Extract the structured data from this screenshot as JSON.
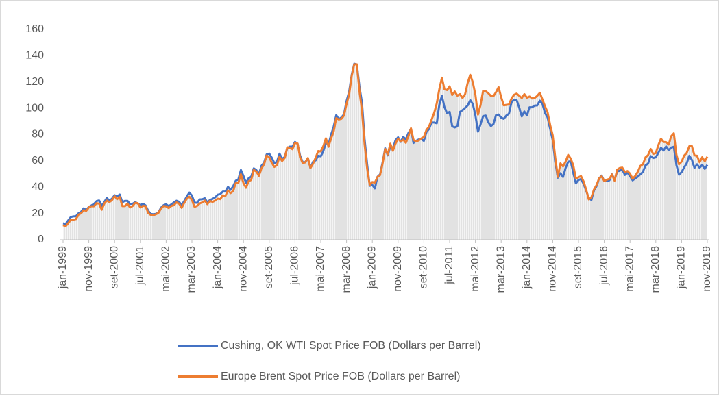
{
  "chart_data": {
    "type": "line",
    "categories": [
      "jan-1999",
      null,
      null,
      null,
      null,
      null,
      null,
      null,
      null,
      null,
      "nov-1999",
      null,
      null,
      null,
      null,
      null,
      null,
      null,
      null,
      null,
      "set-2000",
      null,
      null,
      null,
      null,
      null,
      null,
      null,
      null,
      null,
      "jul-2001",
      null,
      null,
      null,
      null,
      null,
      null,
      null,
      null,
      null,
      "mai-2002",
      null,
      null,
      null,
      null,
      null,
      null,
      null,
      null,
      null,
      "mar-2003",
      null,
      null,
      null,
      null,
      null,
      null,
      null,
      null,
      null,
      "jan-2004",
      null,
      null,
      null,
      null,
      null,
      null,
      null,
      null,
      null,
      "nov-2004",
      null,
      null,
      null,
      null,
      null,
      null,
      null,
      null,
      null,
      "set-2005",
      null,
      null,
      null,
      null,
      null,
      null,
      null,
      null,
      null,
      "jul-2006",
      null,
      null,
      null,
      null,
      null,
      null,
      null,
      null,
      null,
      "mai-2007",
      null,
      null,
      null,
      null,
      null,
      null,
      null,
      null,
      null,
      "mar-2008",
      null,
      null,
      null,
      null,
      null,
      null,
      null,
      null,
      null,
      "jan-2009",
      null,
      null,
      null,
      null,
      null,
      null,
      null,
      null,
      null,
      "nov-2009",
      null,
      null,
      null,
      null,
      null,
      null,
      null,
      null,
      null,
      "set-2010",
      null,
      null,
      null,
      null,
      null,
      null,
      null,
      null,
      null,
      "jul-2011",
      null,
      null,
      null,
      null,
      null,
      null,
      null,
      null,
      null,
      "mai-2012",
      null,
      null,
      null,
      null,
      null,
      null,
      null,
      null,
      null,
      "mar-2013",
      null,
      null,
      null,
      null,
      null,
      null,
      null,
      null,
      null,
      "jan-2014",
      null,
      null,
      null,
      null,
      null,
      null,
      null,
      null,
      null,
      "nov-2014",
      null,
      null,
      null,
      null,
      null,
      null,
      null,
      null,
      null,
      "set-2015",
      null,
      null,
      null,
      null,
      null,
      null,
      null,
      null,
      null,
      "jul-2016",
      null,
      null,
      null,
      null,
      null,
      null,
      null,
      null,
      null,
      "mai-2017",
      null,
      null,
      null,
      null,
      null,
      null,
      null,
      null,
      null,
      "mar-2018",
      null,
      null,
      null,
      null,
      null,
      null,
      null,
      null,
      null,
      "jan-2019",
      null,
      null,
      null,
      null,
      null,
      null,
      null,
      null,
      null,
      "nov-2019"
    ],
    "series": [
      {
        "name": "Cushing, OK WTI Spot Price FOB (Dollars per Barrel)",
        "color": "#4472c4",
        "values": [
          12.5,
          12.0,
          14.7,
          17.3,
          17.8,
          17.9,
          20.1,
          21.3,
          23.9,
          22.6,
          25.0,
          26.1,
          27.3,
          29.4,
          29.9,
          25.7,
          28.8,
          31.8,
          29.7,
          31.3,
          33.9,
          33.1,
          34.4,
          28.5,
          29.6,
          29.6,
          27.2,
          27.4,
          28.6,
          27.6,
          26.4,
          27.4,
          26.2,
          22.2,
          19.6,
          19.4,
          19.7,
          20.7,
          24.4,
          26.3,
          27.0,
          25.5,
          26.9,
          28.4,
          29.7,
          28.9,
          26.3,
          29.4,
          32.9,
          35.9,
          33.6,
          28.3,
          28.1,
          30.7,
          30.8,
          31.6,
          28.3,
          30.3,
          31.1,
          32.2,
          34.3,
          34.7,
          36.7,
          36.7,
          40.3,
          38.0,
          40.7,
          44.9,
          45.9,
          53.1,
          48.5,
          43.3,
          46.8,
          48.0,
          54.3,
          53.0,
          49.8,
          56.3,
          58.7,
          65.0,
          65.6,
          62.4,
          58.3,
          59.4,
          65.5,
          61.6,
          62.9,
          69.7,
          70.9,
          70.9,
          74.4,
          73.0,
          63.8,
          58.9,
          59.1,
          62.0,
          54.5,
          59.3,
          60.4,
          63.9,
          63.5,
          67.5,
          74.1,
          72.4,
          79.9,
          86.0,
          94.8,
          91.7,
          93.0,
          95.4,
          105.5,
          112.6,
          125.4,
          133.9,
          133.4,
          116.7,
          104.1,
          76.6,
          57.3,
          41.1,
          41.7,
          39.1,
          47.9,
          49.7,
          59.0,
          69.6,
          64.2,
          71.1,
          69.4,
          75.7,
          78.0,
          74.5,
          78.3,
          76.4,
          81.2,
          84.3,
          73.7,
          75.3,
          76.3,
          76.6,
          75.2,
          81.9,
          84.3,
          89.2,
          89.2,
          88.6,
          102.9,
          109.5,
          100.9,
          96.3,
          97.3,
          86.3,
          85.5,
          86.3,
          97.2,
          98.6,
          100.3,
          102.2,
          106.2,
          103.3,
          94.7,
          82.3,
          87.9,
          94.1,
          94.5,
          89.5,
          86.5,
          87.9,
          94.8,
          95.3,
          92.9,
          92.0,
          94.5,
          95.8,
          104.6,
          106.6,
          106.3,
          100.5,
          93.9,
          97.6,
          94.6,
          100.8,
          100.8,
          102.1,
          102.2,
          105.8,
          103.6,
          96.5,
          93.2,
          84.4,
          75.8,
          59.3,
          47.2,
          50.6,
          47.8,
          54.5,
          59.3,
          59.8,
          50.9,
          42.9,
          45.5,
          46.2,
          42.4,
          37.2,
          31.7,
          30.3,
          37.5,
          40.8,
          46.7,
          48.8,
          44.7,
          44.7,
          45.2,
          49.8,
          45.7,
          52.0,
          52.5,
          53.5,
          49.3,
          51.1,
          48.5,
          45.2,
          46.6,
          48.0,
          49.8,
          51.6,
          56.6,
          57.9,
          63.7,
          62.2,
          62.7,
          66.3,
          70.0,
          67.9,
          71.0,
          68.1,
          70.2,
          70.8,
          57.0,
          49.5,
          51.4,
          55.0,
          58.2,
          63.9,
          60.8,
          54.7,
          57.4,
          54.8,
          57.0,
          54.0,
          57.0
        ]
      },
      {
        "name": "Europe Brent Spot Price FOB (Dollars per Barrel)",
        "color": "#ed7d31",
        "values": [
          11.1,
          10.3,
          12.5,
          15.3,
          15.3,
          15.7,
          19.1,
          20.2,
          22.5,
          22.0,
          24.6,
          25.5,
          25.5,
          27.8,
          27.5,
          22.8,
          27.6,
          29.8,
          28.7,
          30.2,
          33.1,
          30.9,
          32.5,
          25.6,
          25.6,
          27.5,
          24.5,
          25.7,
          28.1,
          27.8,
          24.6,
          25.8,
          25.6,
          20.5,
          18.9,
          18.6,
          19.4,
          20.3,
          23.7,
          25.7,
          25.4,
          24.1,
          25.7,
          26.3,
          28.4,
          27.5,
          24.3,
          28.0,
          31.2,
          32.8,
          30.3,
          25.0,
          25.8,
          27.6,
          28.4,
          29.8,
          27.1,
          29.6,
          28.8,
          29.8,
          31.3,
          30.9,
          33.8,
          33.4,
          37.6,
          35.5,
          37.1,
          43.0,
          43.1,
          49.8,
          43.1,
          39.6,
          44.5,
          45.5,
          53.1,
          51.9,
          48.7,
          54.3,
          57.5,
          64.1,
          62.7,
          58.5,
          55.5,
          56.8,
          63.1,
          59.9,
          62.3,
          70.4,
          70.0,
          68.9,
          73.7,
          73.2,
          62.5,
          58.4,
          58.9,
          62.2,
          54.6,
          57.8,
          62.4,
          67.5,
          67.2,
          71.3,
          77.2,
          70.8,
          77.1,
          82.3,
          92.5,
          91.5,
          92.0,
          94.5,
          103.3,
          110.4,
          124.6,
          133.5,
          133.5,
          113.4,
          98.0,
          72.7,
          54.0,
          41.6,
          43.9,
          43.5,
          47.7,
          49.2,
          58.1,
          69.1,
          65.0,
          73.1,
          67.7,
          73.2,
          77.0,
          74.7,
          76.2,
          73.8,
          78.8,
          84.8,
          75.9,
          74.8,
          75.6,
          77.1,
          78.2,
          83.5,
          86.1,
          91.4,
          96.5,
          103.7,
          114.6,
          123.3,
          114.5,
          113.9,
          116.7,
          110.2,
          112.8,
          109.6,
          110.8,
          107.9,
          110.7,
          119.3,
          125.5,
          119.8,
          110.3,
          95.2,
          102.6,
          113.4,
          113.0,
          111.5,
          109.5,
          109.2,
          112.3,
          116.1,
          108.5,
          102.3,
          102.6,
          102.9,
          107.4,
          110.3,
          111.2,
          109.5,
          107.8,
          110.8,
          108.1,
          109.0,
          107.5,
          107.8,
          109.5,
          111.8,
          106.8,
          101.6,
          97.1,
          87.4,
          79.4,
          62.3,
          47.8,
          58.1,
          55.9,
          59.5,
          64.6,
          61.7,
          56.5,
          46.5,
          47.6,
          48.4,
          44.3,
          38.0,
          30.7,
          32.2,
          38.2,
          41.6,
          46.7,
          48.3,
          44.7,
          45.7,
          46.3,
          49.7,
          45.0,
          53.3,
          54.6,
          54.9,
          51.6,
          52.3,
          50.3,
          46.4,
          48.5,
          51.7,
          56.2,
          57.4,
          62.7,
          64.4,
          69.1,
          65.3,
          66.0,
          72.1,
          76.9,
          74.4,
          74.3,
          72.5,
          78.9,
          81.0,
          64.8,
          57.4,
          59.4,
          64.0,
          66.1,
          71.2,
          71.3,
          64.2,
          63.9,
          59.0,
          62.8,
          59.7,
          63.2
        ]
      }
    ],
    "ylim": [
      0,
      160
    ],
    "yticks": [
      0,
      20,
      40,
      60,
      80,
      100,
      120,
      140,
      160
    ],
    "grid": false
  }
}
